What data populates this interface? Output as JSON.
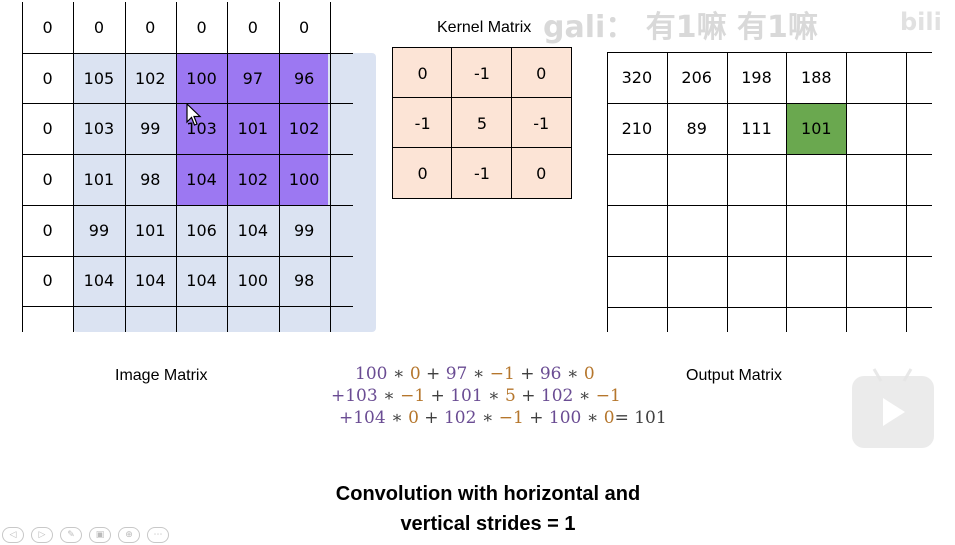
{
  "image_matrix": {
    "label": "Image Matrix",
    "rows": [
      [
        "0",
        "0",
        "0",
        "0",
        "0",
        "0"
      ],
      [
        "0",
        "105",
        "102",
        "100",
        "97",
        "96"
      ],
      [
        "0",
        "103",
        "99",
        "103",
        "101",
        "102"
      ],
      [
        "0",
        "101",
        "98",
        "104",
        "102",
        "100"
      ],
      [
        "0",
        "99",
        "101",
        "106",
        "104",
        "99"
      ],
      [
        "0",
        "104",
        "104",
        "104",
        "100",
        "98"
      ]
    ],
    "highlight_color": "#9c78f2",
    "fill_color": "#dbe3f2"
  },
  "kernel_matrix": {
    "label": "Kernel Matrix",
    "rows": [
      [
        "0",
        "-1",
        "0"
      ],
      [
        "-1",
        "5",
        "-1"
      ],
      [
        "0",
        "-1",
        "0"
      ]
    ],
    "fill_color": "#fce4d6"
  },
  "output_matrix": {
    "label": "Output Matrix",
    "rows": [
      [
        "320",
        "206",
        "198",
        "188",
        ""
      ],
      [
        "210",
        "89",
        "111",
        "101",
        ""
      ],
      [
        "",
        "",
        "",
        "",
        ""
      ],
      [
        "",
        "",
        "",
        "",
        ""
      ],
      [
        "",
        "",
        "",
        "",
        ""
      ]
    ],
    "highlight_color": "#6aa84f"
  },
  "equation": {
    "line1": [
      {
        "t": "100",
        "c": "purple"
      },
      {
        "t": " ∗ ",
        "c": "dark"
      },
      {
        "t": "0",
        "c": "brown"
      },
      {
        "t": " + ",
        "c": "dark"
      },
      {
        "t": "97",
        "c": "purple"
      },
      {
        "t": " ∗ ",
        "c": "dark"
      },
      {
        "t": "−1",
        "c": "brown"
      },
      {
        "t": " + ",
        "c": "dark"
      },
      {
        "t": "96",
        "c": "purple"
      },
      {
        "t": " ∗ ",
        "c": "dark"
      },
      {
        "t": "0",
        "c": "brown"
      }
    ],
    "line2": [
      {
        "t": "+103",
        "c": "purple"
      },
      {
        "t": " ∗ ",
        "c": "dark"
      },
      {
        "t": "−1",
        "c": "brown"
      },
      {
        "t": " + ",
        "c": "dark"
      },
      {
        "t": "101",
        "c": "purple"
      },
      {
        "t": " ∗ ",
        "c": "dark"
      },
      {
        "t": "5",
        "c": "brown"
      },
      {
        "t": " + ",
        "c": "dark"
      },
      {
        "t": "102",
        "c": "purple"
      },
      {
        "t": " ∗ ",
        "c": "dark"
      },
      {
        "t": "−1",
        "c": "brown"
      }
    ],
    "line3": [
      {
        "t": "+104",
        "c": "purple"
      },
      {
        "t": " ∗ ",
        "c": "dark"
      },
      {
        "t": "0",
        "c": "brown"
      },
      {
        "t": " + ",
        "c": "dark"
      },
      {
        "t": "102",
        "c": "purple"
      },
      {
        "t": " ∗ ",
        "c": "dark"
      },
      {
        "t": "−1",
        "c": "brown"
      },
      {
        "t": " + ",
        "c": "dark"
      },
      {
        "t": "100",
        "c": "purple"
      },
      {
        "t": " ∗ ",
        "c": "dark"
      },
      {
        "t": "0",
        "c": "brown"
      },
      {
        "t": "= 101",
        "c": "dark"
      }
    ]
  },
  "caption": {
    "line1": "Convolution with horizontal and",
    "line2": "vertical strides = 1"
  },
  "watermark": "gali： 有1嘛 有1嘛",
  "logo_text": "bili",
  "player": {
    "play_icon": "play-icon"
  },
  "toolbar": {
    "buttons": [
      {
        "name": "prev-icon",
        "glyph": "◁"
      },
      {
        "name": "next-icon",
        "glyph": "▷"
      },
      {
        "name": "pen-icon",
        "glyph": "✎"
      },
      {
        "name": "slides-icon",
        "glyph": "▣"
      },
      {
        "name": "zoom-icon",
        "glyph": "⊕"
      },
      {
        "name": "more-icon",
        "glyph": "⋯"
      }
    ]
  },
  "colors": {
    "purple_text": "#6a4c93",
    "brown_text": "#b5762c",
    "dark_text": "#404040"
  }
}
